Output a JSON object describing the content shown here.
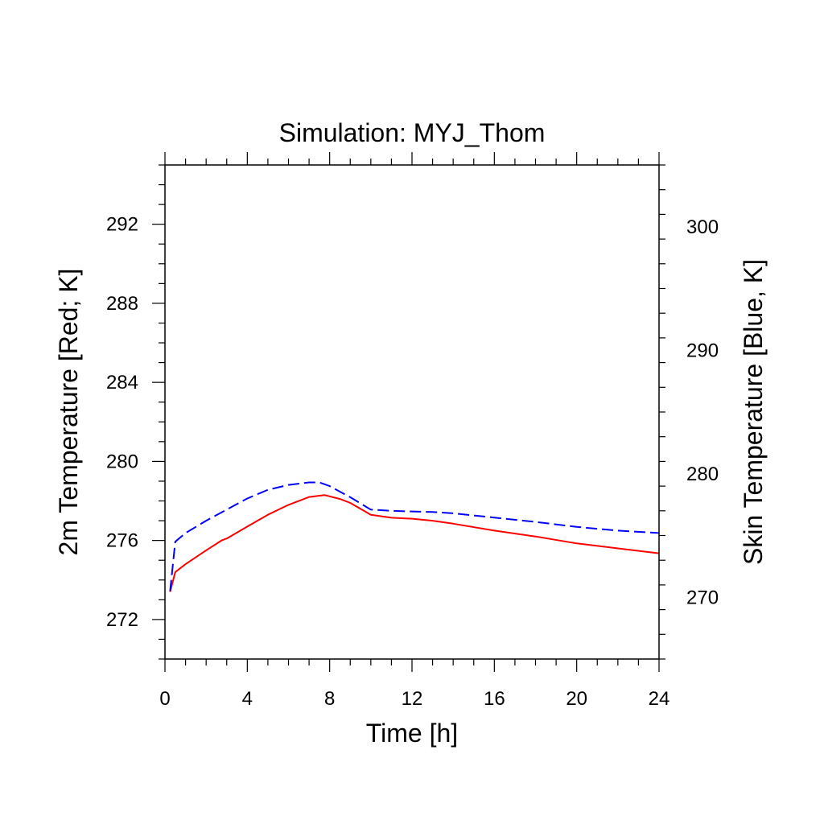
{
  "chart_data": {
    "type": "line",
    "title": "Simulation: MYJ_Thom",
    "xlabel": "Time [h]",
    "ylabel_left": "2m Temperature [Red; K]",
    "ylabel_right": "Skin Temperature [Blue, K]",
    "xlim": [
      0,
      24
    ],
    "ylim_left": [
      270,
      295
    ],
    "ylim_right": [
      265,
      305
    ],
    "xticks": [
      "0",
      "4",
      "8",
      "12",
      "16",
      "20",
      "24"
    ],
    "yticks_left": [
      "272",
      "276",
      "280",
      "284",
      "288",
      "292"
    ],
    "yticks_right": [
      "270",
      "280",
      "290",
      "300"
    ],
    "grid": false,
    "series": [
      {
        "axis": "left",
        "color": "#ff0000",
        "dash": "solid",
        "x": [
          0.25,
          0.5,
          1,
          2,
          2.75,
          3,
          4,
          5,
          6,
          7,
          7.75,
          8.5,
          9,
          10,
          11,
          12,
          13,
          14,
          16,
          18,
          20,
          22,
          24
        ],
        "y": [
          273.4,
          274.4,
          274.8,
          275.5,
          276.0,
          276.1,
          276.7,
          277.3,
          277.8,
          278.2,
          278.3,
          278.1,
          277.9,
          277.3,
          277.15,
          277.1,
          277.0,
          276.85,
          276.5,
          276.2,
          275.85,
          275.6,
          275.35
        ]
      },
      {
        "axis": "right",
        "color": "#0000ff",
        "dash": "dashed",
        "x": [
          0.25,
          0.5,
          1,
          2,
          3,
          4,
          5,
          6,
          7,
          7.5,
          8,
          9,
          10,
          11,
          12,
          13,
          14,
          16,
          18,
          20,
          22,
          24
        ],
        "y": [
          270.5,
          274.5,
          275.2,
          276.2,
          277.1,
          278.0,
          278.7,
          279.1,
          279.3,
          279.3,
          279.0,
          278.1,
          277.1,
          277.0,
          276.95,
          276.9,
          276.8,
          276.45,
          276.1,
          275.7,
          275.4,
          275.2
        ]
      }
    ]
  }
}
